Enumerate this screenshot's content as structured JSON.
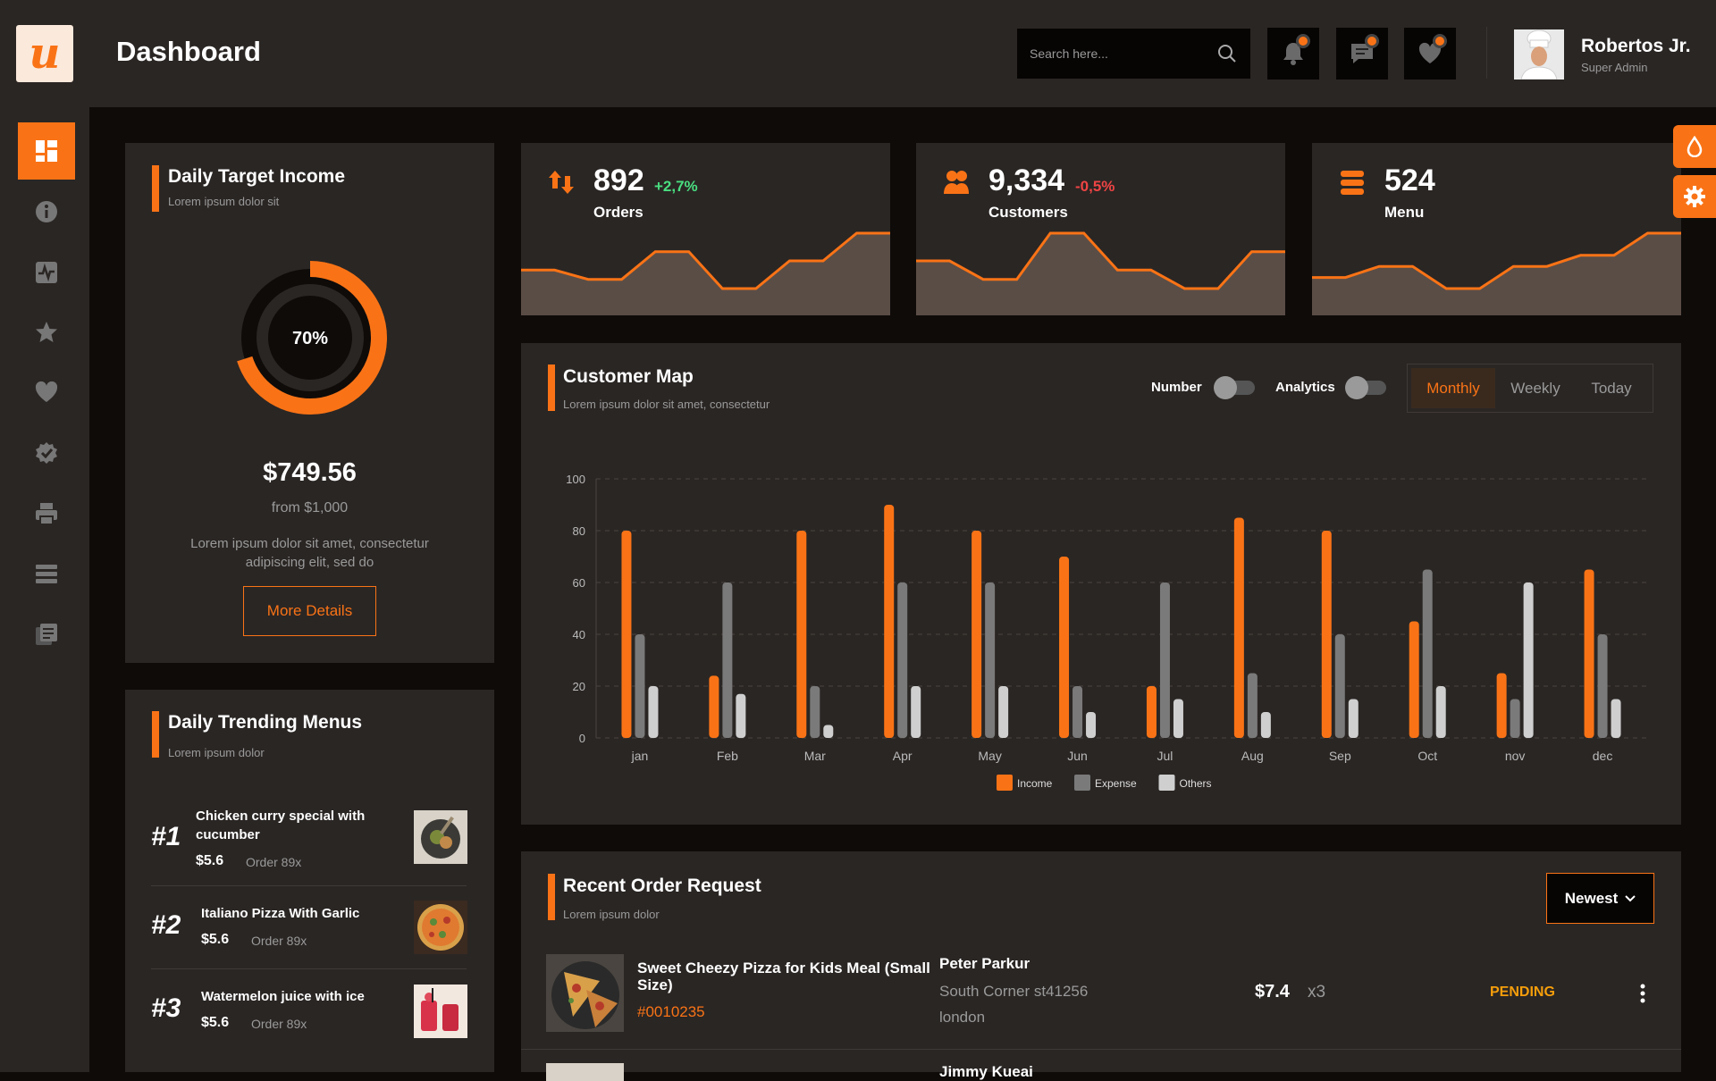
{
  "header": {
    "logo_letter": "u",
    "title": "Dashboard",
    "search_placeholder": "Search here...",
    "icons": [
      "bell-icon",
      "chat-icon",
      "heart-icon"
    ],
    "user_name": "Robertos Jr.",
    "user_role": "Super Admin"
  },
  "sidebar": {
    "items": [
      {
        "icon": "dashboard-icon",
        "active": true
      },
      {
        "icon": "info-icon"
      },
      {
        "icon": "activity-icon"
      },
      {
        "icon": "star-icon"
      },
      {
        "icon": "heart-icon"
      },
      {
        "icon": "badge-check-icon"
      },
      {
        "icon": "printer-icon"
      },
      {
        "icon": "list-icon"
      },
      {
        "icon": "document-icon"
      }
    ]
  },
  "target": {
    "title": "Daily Target Income",
    "subtitle": "Lorem ipsum dolor sit",
    "percent_label": "70%",
    "percent": 0.7,
    "amount": "$749.56",
    "from": "from $1,000",
    "desc_line1": "Lorem ipsum dolor sit amet, consectetur",
    "desc_line2": "adipiscing elit, sed do",
    "button": "More Details"
  },
  "stats": [
    {
      "icon": "arrows-updown-icon",
      "value": "892",
      "change": "+2,7%",
      "change_color": "#4ade80",
      "label": "Orders",
      "spark": [
        2,
        2,
        1,
        1,
        4,
        4,
        0,
        0,
        3,
        3,
        6,
        6
      ]
    },
    {
      "icon": "users-icon",
      "value": "9,334",
      "change": "-0,5%",
      "change_color": "#ef4444",
      "label": "Customers",
      "spark": [
        3,
        3,
        1,
        1,
        6,
        6,
        2,
        2,
        0,
        0,
        4,
        4
      ]
    },
    {
      "icon": "menu-list-icon",
      "value": "524",
      "change": "",
      "change_color": "#4ade80",
      "label": "Menu",
      "spark": [
        1,
        1,
        2,
        2,
        0,
        0,
        2,
        2,
        3,
        3,
        5,
        5
      ]
    }
  ],
  "customer_map": {
    "title": "Customer Map",
    "subtitle": "Lorem ipsum dolor sit amet, consectetur",
    "toggle_number": "Number",
    "toggle_analytics": "Analytics",
    "tabs": [
      "Monthly",
      "Weekly",
      "Today"
    ],
    "active_tab": "Monthly"
  },
  "chart_data": {
    "type": "bar",
    "categories": [
      "jan",
      "Feb",
      "Mar",
      "Apr",
      "May",
      "Jun",
      "Jul",
      "Aug",
      "Sep",
      "Oct",
      "nov",
      "dec"
    ],
    "series": [
      {
        "name": "Income",
        "color": "#f97316",
        "values": [
          80,
          24,
          80,
          90,
          80,
          70,
          20,
          85,
          80,
          45,
          25,
          65
        ]
      },
      {
        "name": "Expense",
        "color": "#7a7a7a",
        "values": [
          40,
          60,
          20,
          60,
          60,
          20,
          60,
          25,
          40,
          65,
          15,
          40
        ]
      },
      {
        "name": "Others",
        "color": "#cfcfcf",
        "values": [
          20,
          17,
          5,
          20,
          20,
          10,
          15,
          10,
          15,
          20,
          60,
          15
        ]
      }
    ],
    "yticks": [
      "0",
      "20",
      "40",
      "60",
      "80",
      "100"
    ],
    "ylim": [
      0,
      100
    ],
    "grid": true,
    "legend_position": "bottom-center"
  },
  "trending": {
    "title": "Daily Trending Menus",
    "subtitle": "Lorem ipsum dolor",
    "items": [
      {
        "rank": "#1",
        "name_line1": "Chicken curry special with",
        "name_line2": "cucumber",
        "price": "$5.6",
        "orders": "Order 89x"
      },
      {
        "rank": "#2",
        "name_line1": "Italiano Pizza With Garlic",
        "name_line2": "",
        "price": "$5.6",
        "orders": "Order 89x"
      },
      {
        "rank": "#3",
        "name_line1": "Watermelon juice with ice",
        "name_line2": "",
        "price": "$5.6",
        "orders": "Order 89x"
      }
    ]
  },
  "orders": {
    "title": "Recent Order Request",
    "subtitle": "Lorem ipsum dolor",
    "sort_label": "Newest",
    "rows": [
      {
        "name_line1": "Sweet Cheezy Pizza for Kids Meal (Small",
        "name_line2": "Size)",
        "id": "#0010235",
        "customer": "Peter Parkur",
        "address_line1": "South Corner st41256",
        "address_line2": "london",
        "price": "$7.4",
        "qty": "x3",
        "status": "PENDING",
        "status_color": "#f59e0b"
      },
      {
        "name_line1": "",
        "name_line2": "",
        "id": "",
        "customer": "Jimmy Kueai",
        "address_line1": "",
        "address_line2": "",
        "price": "",
        "qty": "",
        "status": "",
        "status_color": "#f59e0b"
      }
    ]
  },
  "float_buttons": [
    "droplet-icon",
    "gear-icon"
  ]
}
